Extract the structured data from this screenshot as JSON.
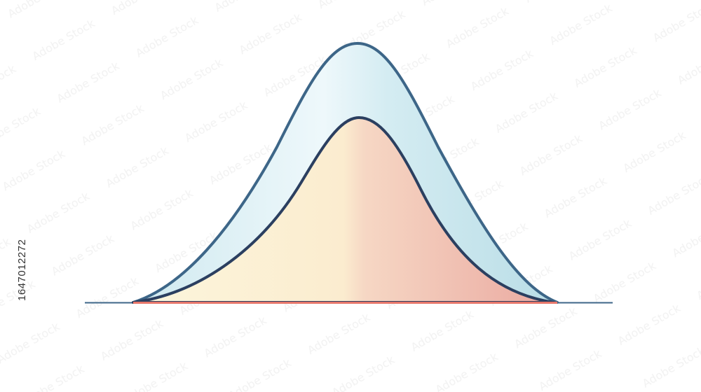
{
  "watermark": {
    "id_text": "1647012272",
    "pattern_text": "Adobe Stock"
  },
  "colors": {
    "background": "#ffffff",
    "outer_stroke": "#3d6688",
    "inner_stroke": "#2b3f60",
    "outer_fill_light": "#eef8fb",
    "outer_fill_dark": "#b9dde6",
    "inner_left": "#fcf6dc",
    "inner_mid": "#f6d7c4",
    "inner_right": "#eaa8a0",
    "baseline_line": "#3d6688",
    "baseline_accent": "#e7776b"
  },
  "icons": {
    "outer_curve": "bell-curve-icon",
    "inner_curve": "bell-curve-icon"
  }
}
